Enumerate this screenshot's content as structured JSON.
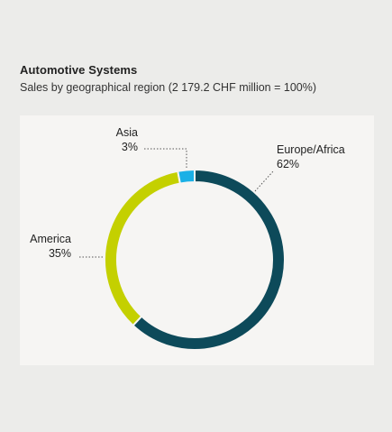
{
  "header": {
    "title": "Automotive Systems",
    "subtitle": "Sales by geographical region (2 179.2 CHF million = 100%)"
  },
  "chart_data": {
    "type": "pie",
    "donut": true,
    "title": "Automotive Systems",
    "subtitle": "Sales by geographical region (2 179.2 CHF million = 100%)",
    "slices": [
      {
        "label": "Europe/Africa",
        "value": 62,
        "value_label": "62%",
        "color": "#0d4a5a"
      },
      {
        "label": "America",
        "value": 35,
        "value_label": "35%",
        "color": "#c4d000"
      },
      {
        "label": "Asia",
        "value": 3,
        "value_label": "3%",
        "color": "#1ab0e6"
      }
    ],
    "start": "top",
    "direction": "clockwise"
  }
}
